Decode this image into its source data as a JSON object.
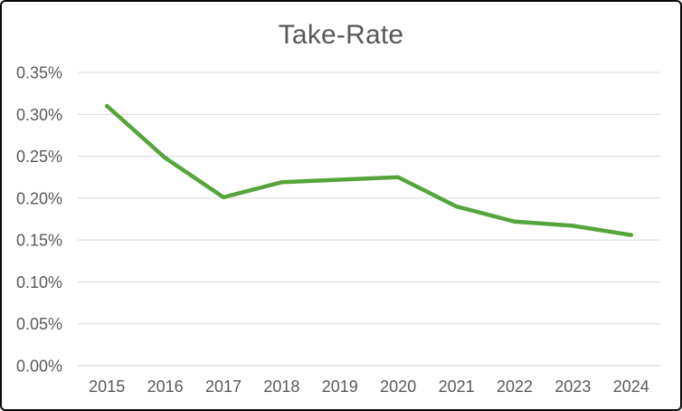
{
  "chart_data": {
    "type": "line",
    "title": "Take-Rate",
    "categories": [
      "2015",
      "2016",
      "2017",
      "2018",
      "2019",
      "2020",
      "2021",
      "2022",
      "2023",
      "2024"
    ],
    "series": [
      {
        "name": "Take-Rate",
        "values": [
          0.31,
          0.248,
          0.201,
          0.219,
          0.222,
          0.225,
          0.19,
          0.172,
          0.167,
          0.156
        ],
        "color": "#56a53c"
      }
    ],
    "unit": "%",
    "xlabel": "",
    "ylabel": "",
    "y_axis": {
      "min": 0,
      "max": 0.35,
      "step": 0.05,
      "tick_labels": [
        "0.00%",
        "0.05%",
        "0.10%",
        "0.15%",
        "0.20%",
        "0.25%",
        "0.30%",
        "0.35%"
      ]
    },
    "grid": true,
    "legend_position": "none"
  },
  "colors": {
    "title_text": "#595959",
    "axis_text": "#595959",
    "gridline": "#d8d8d8",
    "axis_line": "#d2d2d2",
    "series_line": "#56a53c",
    "frame_border": "#0a0a0a",
    "background": "#ffffff"
  }
}
